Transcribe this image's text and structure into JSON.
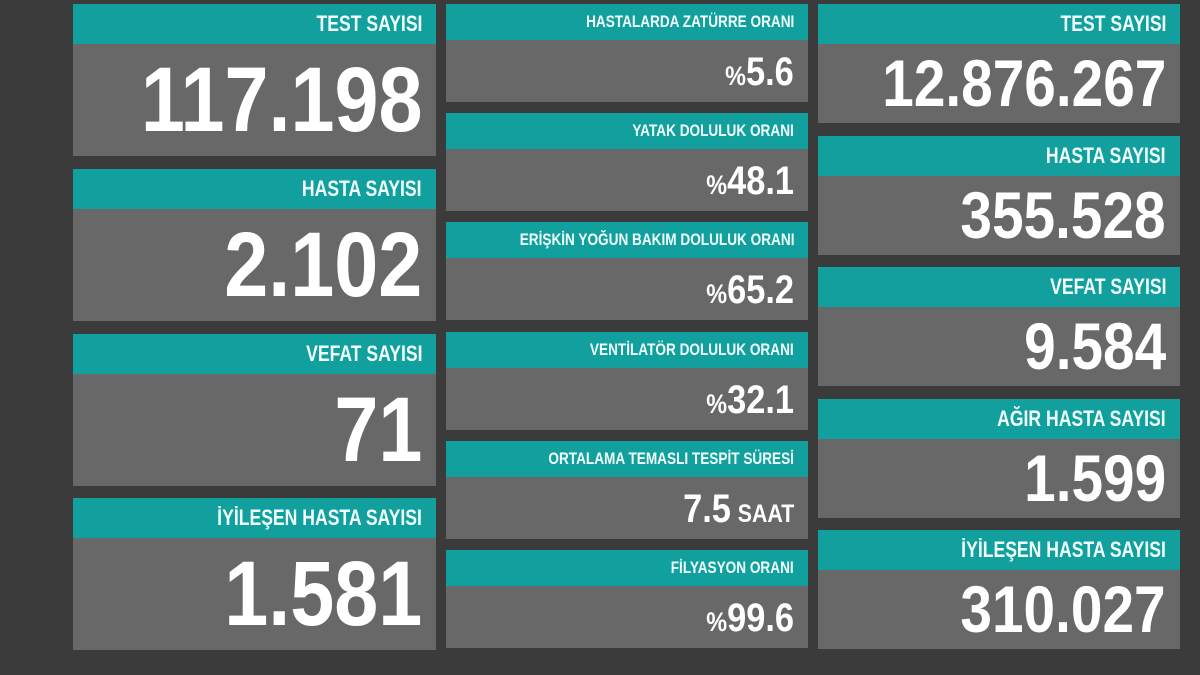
{
  "colors": {
    "background": "#3b3b3b",
    "header": "#12a09f",
    "card": "#686868",
    "text": "#ffffff"
  },
  "daily": [
    {
      "label": "TEST SAYISI",
      "value": "117.198"
    },
    {
      "label": "HASTA SAYISI",
      "value": "2.102"
    },
    {
      "label": "VEFAT SAYISI",
      "value": "71"
    },
    {
      "label": "İYİLEŞEN HASTA SAYISI",
      "value": "1.581"
    }
  ],
  "rates": [
    {
      "label": "HASTALARDA ZATÜRRE ORANI",
      "prefix": "%",
      "value": "5.6"
    },
    {
      "label": "YATAK DOLULUK ORANI",
      "prefix": "%",
      "value": "48.1"
    },
    {
      "label": "ERİŞKİN YOĞUN BAKIM DOLULUK ORANI",
      "prefix": "%",
      "value": "65.2"
    },
    {
      "label": "VENTİLATÖR DOLULUK ORANI",
      "prefix": "%",
      "value": "32.1"
    },
    {
      "label": "ORTALAMA TEMASLI TESPİT SÜRESİ",
      "value": "7.5",
      "unit": "SAAT"
    },
    {
      "label": "FİLYASYON ORANI",
      "prefix": "%",
      "value": "99.6"
    }
  ],
  "totals": [
    {
      "label": "TEST SAYISI",
      "value": "12.876.267"
    },
    {
      "label": "HASTA SAYISI",
      "value": "355.528"
    },
    {
      "label": "VEFAT SAYISI",
      "value": "9.584"
    },
    {
      "label": "AĞIR HASTA SAYISI",
      "value": "1.599"
    },
    {
      "label": "İYİLEŞEN HASTA SAYISI",
      "value": "310.027"
    }
  ]
}
